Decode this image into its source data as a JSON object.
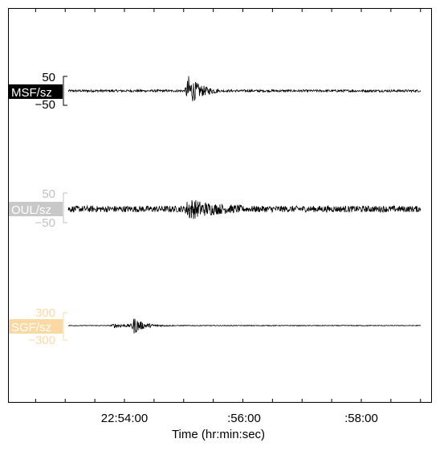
{
  "chart_data": {
    "type": "line",
    "xlabel": "Time (hr:min:sec)",
    "x_ticks": [
      "22:54:00",
      ":56:00",
      ":58:00"
    ],
    "x_range": [
      "22:52:00",
      "22:59:00"
    ],
    "traces": [
      {
        "name": "MSF/sz",
        "label_bg": "#000000",
        "label_color": "#ffffff",
        "scale_color": "#000000",
        "scale_max": "50",
        "scale_min": "−50",
        "ylim": [
          -50,
          50
        ],
        "noise_amp": 4,
        "events": [
          {
            "time": "22:55:05",
            "peak": 50,
            "duration_s": 30,
            "decay_s": 12
          }
        ]
      },
      {
        "name": "OUL/sz",
        "label_bg": "#c8c8c8",
        "label_color": "#ffffff",
        "scale_color": "#c0c0c0",
        "scale_max": "50",
        "scale_min": "−50",
        "ylim": [
          -50,
          50
        ],
        "noise_amp": 11,
        "events": [
          {
            "time": "22:55:05",
            "peak": 30,
            "duration_s": 55,
            "decay_s": 22
          }
        ]
      },
      {
        "name": "SGF/sz",
        "label_bg": "#fbd9a3",
        "label_color": "#ffffff",
        "scale_color": "#fbd9a3",
        "scale_max": "300",
        "scale_min": "−300",
        "ylim": [
          -300,
          300
        ],
        "noise_amp": 8,
        "events": [
          {
            "time": "22:53:50",
            "peak": 45,
            "duration_s": 25,
            "decay_s": 20
          },
          {
            "time": "22:54:10",
            "peak": 170,
            "duration_s": 40,
            "decay_s": 10
          }
        ]
      }
    ]
  }
}
